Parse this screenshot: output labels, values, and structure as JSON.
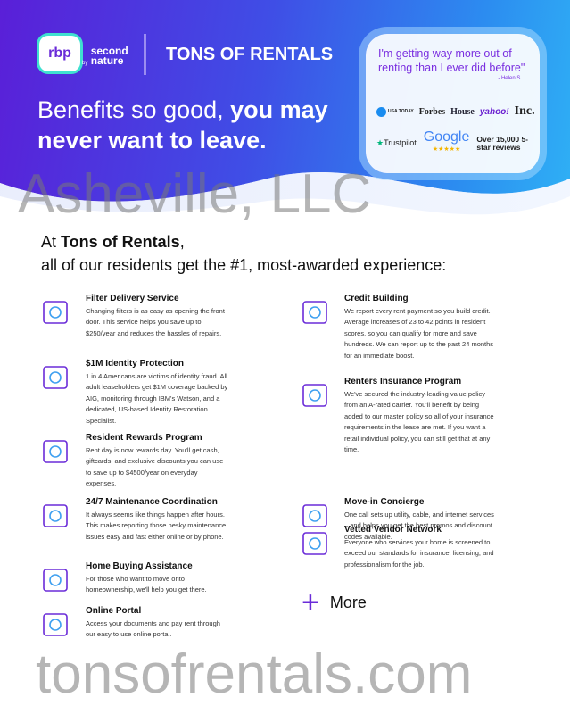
{
  "header": {
    "logo_text": "rbp",
    "by": "by",
    "partner": "second nature",
    "brand": "TONS OF RENTALS",
    "headline_light": "Benefits so good, ",
    "headline_bold": "you may never want to leave."
  },
  "testimonial": {
    "quote": "I'm getting way more out of renting than I ever did before\"",
    "author": "- Helen S.",
    "press": [
      "USA TODAY",
      "Forbes",
      "House",
      "yahoo!",
      "Inc."
    ],
    "trustpilot": "Trustpilot",
    "google": "Google",
    "stars": "★★★★★",
    "reviews": "Over 15,000 5-star reviews"
  },
  "intro": {
    "prefix": "At ",
    "company": "Tons of Rentals",
    "suffix": ",",
    "line2": "all of our residents get the #1, most-awarded experience:"
  },
  "benefits_left": [
    {
      "title": "Filter Delivery Service",
      "text": "Changing filters is as easy as opening the front door. This service helps you save up to $250/year and reduces the hassles of repairs.",
      "icon": "filter-box-icon"
    },
    {
      "title": "$1M Identity Protection",
      "text": "1 in 4 Americans are victims of identity fraud. All adult leaseholders get $1M coverage backed by AIG, monitoring through IBM's Watson, and a dedicated, US-based Identity Restoration Specialist.",
      "icon": "id-shield-icon"
    },
    {
      "title": "Resident Rewards Program",
      "text": "Rent day is now rewards day. You'll get cash, giftcards, and exclusive discounts you can use to save up to $4500/year on everyday expenses.",
      "icon": "award-icon"
    },
    {
      "title": "24/7 Maintenance Coordination",
      "text": "It always seems like things happen after hours. This makes reporting those pesky maintenance issues easy and fast either online or by phone.",
      "icon": "clock-icon"
    },
    {
      "title": "Home Buying Assistance",
      "text": "For those who want to move onto homeownership, we'll help you get there.",
      "icon": "home-sign-icon"
    },
    {
      "title": "Online Portal",
      "text": "Access your documents and pay rent through our easy to use online portal.",
      "icon": "laptop-icon"
    }
  ],
  "benefits_right": [
    {
      "title": "Credit Building",
      "text": "We report every rent payment so you build credit. Average increases of 23 to 42 points in resident scores, so you can qualify for more and save hundreds. We can report up to the past 24 months for an immediate boost.",
      "icon": "chart-icon"
    },
    {
      "title": "Renters Insurance Program",
      "text": "We've secured the industry-leading value policy from an A-rated carrier. You'll benefit by being added to our master policy so all of your insurance requirements in the lease are met. If you want a retail individual policy, you can still get that at any time.",
      "icon": "house-umbrella-icon"
    },
    {
      "title": "Move-in Concierge",
      "text": "One call sets up utility, cable, and internet services – and helps you get the best promos and discount codes available.",
      "icon": "discount-icon"
    },
    {
      "title": "Vetted Vendor Network",
      "text": "Everyone who services your home is screened to exceed our standards for insurance, licensing, and professionalism for the job.",
      "icon": "vendor-icon"
    }
  ],
  "more": {
    "symbol": "+",
    "label": "More"
  },
  "watermark": {
    "line1": "tonsofrentals.com",
    "line2": "Asheville, LLC"
  },
  "colors": {
    "accent": "#6a2bd8",
    "gradient_start": "#5a1fd8",
    "gradient_end": "#2fb1f5"
  }
}
